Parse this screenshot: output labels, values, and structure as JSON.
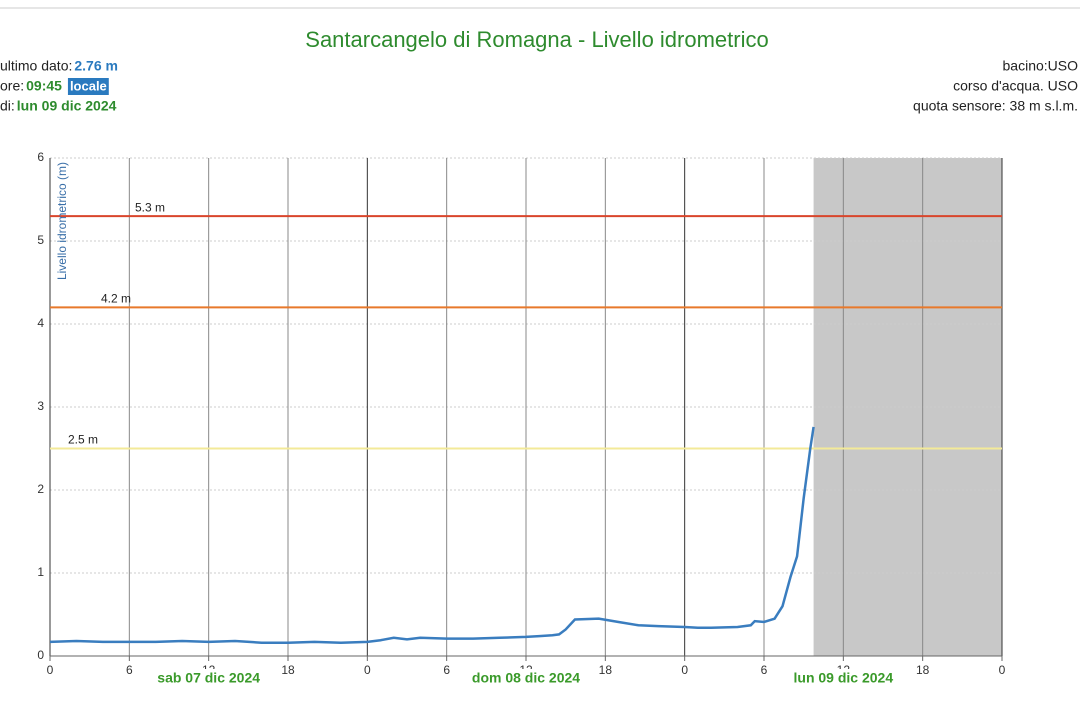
{
  "chart_data": {
    "type": "line",
    "title": "Santarcangelo di Romagna - Livello idrometrico",
    "info_left": [
      {
        "label": "ultimo dato:",
        "value": "2.76 m"
      },
      {
        "label": "ore:",
        "value": "09:45",
        "badge": "locale"
      },
      {
        "label": "di:",
        "value": "lun 09 dic 2024"
      }
    ],
    "info_right": [
      "bacino:USO",
      "corso d'acqua. USO",
      "quota sensore: 38 m s.l.m."
    ],
    "y_label": "Livello idrometrico (m)",
    "color": "#3a7dbf",
    "x": [
      0,
      2,
      4,
      6,
      8,
      10,
      12,
      14,
      16,
      18,
      20,
      22,
      24,
      25,
      26,
      27,
      28,
      30,
      32,
      34,
      36,
      37,
      38,
      38.5,
      39,
      39.7,
      41.5,
      43,
      44.5,
      46,
      48,
      49,
      50,
      52,
      53,
      53.3,
      54,
      54.8,
      55.4,
      56,
      56.5,
      57,
      57.5,
      57.75
    ],
    "values": [
      0.17,
      0.18,
      0.17,
      0.17,
      0.17,
      0.18,
      0.17,
      0.18,
      0.16,
      0.16,
      0.17,
      0.16,
      0.17,
      0.19,
      0.22,
      0.2,
      0.22,
      0.21,
      0.21,
      0.22,
      0.23,
      0.24,
      0.25,
      0.26,
      0.32,
      0.44,
      0.45,
      0.41,
      0.37,
      0.36,
      0.35,
      0.34,
      0.34,
      0.35,
      0.37,
      0.42,
      0.41,
      0.45,
      0.6,
      0.95,
      1.2,
      1.9,
      2.5,
      2.76
    ],
    "thresholds": [
      {
        "value": 5.3,
        "label": "5.3 m",
        "color": "#d9452b"
      },
      {
        "value": 4.2,
        "label": "4.2 m",
        "color": "#e8792b"
      },
      {
        "value": 2.5,
        "label": "2.5 m",
        "color": "#f3ea98"
      }
    ],
    "xlim": [
      0,
      72
    ],
    "xticks": [
      0,
      6,
      12,
      18,
      {
        "value": 24,
        "label": "0"
      },
      {
        "value": 30,
        "label": "6"
      },
      {
        "value": 36,
        "label": "12"
      },
      {
        "value": 42,
        "label": "18"
      },
      {
        "value": 48,
        "label": "0"
      },
      {
        "value": 54,
        "label": "6"
      },
      {
        "value": 60,
        "label": "12"
      },
      {
        "value": 66,
        "label": "18"
      },
      {
        "value": 72,
        "label": "0"
      }
    ],
    "day_labels": [
      {
        "value": 12,
        "label": "sab 07 dic 2024"
      },
      {
        "value": 36,
        "label": "dom 08 dic 2024"
      },
      {
        "value": 60,
        "label": "lun 09 dic 2024"
      }
    ],
    "ylim": [
      0,
      6
    ],
    "yticks": [
      0,
      1,
      2,
      3,
      4,
      5,
      6
    ],
    "grid": true
  }
}
